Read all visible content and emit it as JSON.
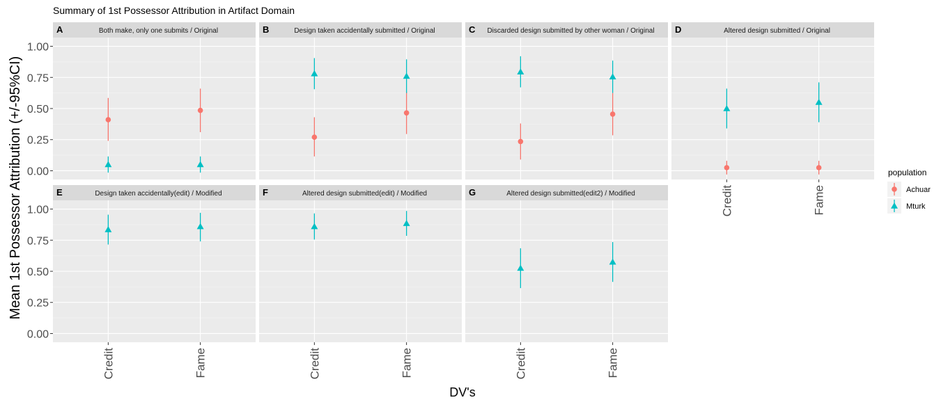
{
  "title": "Summary of 1st Possessor Attribution in Artifact Domain",
  "ylabel": "Mean 1st Possessor Attribution (+/-95%CI)",
  "xlabel": "DV's",
  "legend": {
    "title": "population",
    "entries": [
      {
        "name": "Achuar",
        "color": "#F8766D",
        "shape": "circle"
      },
      {
        "name": "Mturk",
        "color": "#00BFC4",
        "shape": "triangle"
      }
    ]
  },
  "chart_data": {
    "type": "scatter",
    "subtype": "faceted point-range (mean with 95% CI error bars)",
    "x": [
      "Credit",
      "Fame"
    ],
    "ylim": [
      -0.07,
      1.07
    ],
    "yticks": [
      0.0,
      0.25,
      0.5,
      0.75,
      1.0
    ],
    "ytick_labels": [
      "0.00",
      "0.25",
      "0.50",
      "0.75",
      "1.00"
    ],
    "grid": true,
    "legend_position": "right",
    "facets": [
      {
        "letter": "A",
        "title": "Both make, only one submits / Original",
        "series": [
          {
            "name": "Achuar",
            "values": [
              0.41,
              0.485
            ],
            "lower": [
              0.24,
              0.31
            ],
            "upper": [
              0.585,
              0.66
            ]
          },
          {
            "name": "Mturk",
            "values": [
              0.05,
              0.05
            ],
            "lower": [
              -0.015,
              -0.015
            ],
            "upper": [
              0.115,
              0.115
            ]
          }
        ]
      },
      {
        "letter": "B",
        "title": "Design taken accidentally submitted / Original",
        "series": [
          {
            "name": "Achuar",
            "values": [
              0.27,
              0.465
            ],
            "lower": [
              0.115,
              0.295
            ],
            "upper": [
              0.43,
              0.635
            ]
          },
          {
            "name": "Mturk",
            "values": [
              0.78,
              0.76
            ],
            "lower": [
              0.655,
              0.625
            ],
            "upper": [
              0.905,
              0.895
            ]
          }
        ]
      },
      {
        "letter": "C",
        "title": "Discarded design submitted by other woman / Original",
        "series": [
          {
            "name": "Achuar",
            "values": [
              0.235,
              0.455
            ],
            "lower": [
              0.09,
              0.285
            ],
            "upper": [
              0.38,
              0.625
            ]
          },
          {
            "name": "Mturk",
            "values": [
              0.795,
              0.755
            ],
            "lower": [
              0.67,
              0.625
            ],
            "upper": [
              0.92,
              0.885
            ]
          }
        ]
      },
      {
        "letter": "D",
        "title": "Altered design submitted / Original",
        "series": [
          {
            "name": "Achuar",
            "values": [
              0.025,
              0.025
            ],
            "lower": [
              -0.03,
              -0.03
            ],
            "upper": [
              0.08,
              0.08
            ]
          },
          {
            "name": "Mturk",
            "values": [
              0.5,
              0.55
            ],
            "lower": [
              0.34,
              0.39
            ],
            "upper": [
              0.66,
              0.71
            ]
          }
        ]
      },
      {
        "letter": "E",
        "title": "Design taken accidentally(edit) / Modified",
        "series": [
          {
            "name": "Mturk",
            "values": [
              0.835,
              0.86
            ],
            "lower": [
              0.715,
              0.74
            ],
            "upper": [
              0.955,
              0.97
            ]
          }
        ]
      },
      {
        "letter": "F",
        "title": "Altered design submitted(edit) / Modified",
        "series": [
          {
            "name": "Mturk",
            "values": [
              0.86,
              0.885
            ],
            "lower": [
              0.755,
              0.785
            ],
            "upper": [
              0.965,
              0.985
            ]
          }
        ]
      },
      {
        "letter": "G",
        "title": "Altered design submitted(edit2) / Modified",
        "series": [
          {
            "name": "Mturk",
            "values": [
              0.525,
              0.575
            ],
            "lower": [
              0.365,
              0.415
            ],
            "upper": [
              0.685,
              0.735
            ]
          }
        ]
      }
    ]
  }
}
